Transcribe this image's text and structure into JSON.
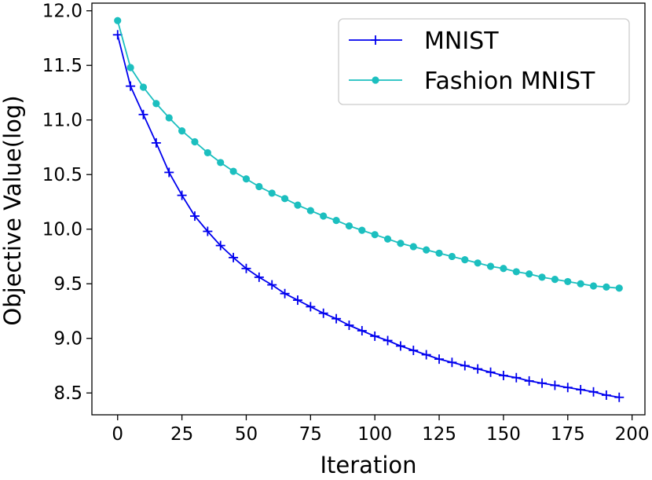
{
  "chart_data": {
    "type": "line",
    "xlabel": "Iteration",
    "ylabel": "Objective Value(log)",
    "xlim": [
      -10,
      205
    ],
    "ylim": [
      8.3,
      12.07
    ],
    "xticks": [
      0,
      25,
      50,
      75,
      100,
      125,
      150,
      175,
      200
    ],
    "xtick_labels": [
      "0",
      "25",
      "50",
      "75",
      "100",
      "125",
      "150",
      "175",
      "200"
    ],
    "yticks": [
      8.5,
      9.0,
      9.5,
      10.0,
      10.5,
      11.0,
      11.5,
      12.0
    ],
    "ytick_labels": [
      "8.5",
      "9.0",
      "9.5",
      "10.0",
      "10.5",
      "11.0",
      "11.5",
      "12.0"
    ],
    "legend_position": "top-right",
    "x": [
      0,
      5,
      10,
      15,
      20,
      25,
      30,
      35,
      40,
      45,
      50,
      55,
      60,
      65,
      70,
      75,
      80,
      85,
      90,
      95,
      100,
      105,
      110,
      115,
      120,
      125,
      130,
      135,
      140,
      145,
      150,
      155,
      160,
      165,
      170,
      175,
      180,
      185,
      190,
      195
    ],
    "series": [
      {
        "name": "MNIST",
        "color": "#0000ee",
        "marker": "plus",
        "values": [
          11.78,
          11.31,
          11.05,
          10.79,
          10.52,
          10.31,
          10.12,
          9.98,
          9.85,
          9.74,
          9.64,
          9.56,
          9.49,
          9.41,
          9.35,
          9.29,
          9.23,
          9.18,
          9.12,
          9.07,
          9.02,
          8.98,
          8.93,
          8.89,
          8.85,
          8.81,
          8.78,
          8.75,
          8.72,
          8.69,
          8.66,
          8.64,
          8.61,
          8.59,
          8.57,
          8.55,
          8.53,
          8.51,
          8.48,
          8.46
        ]
      },
      {
        "name": "Fashion MNIST",
        "color": "#1cbfbf",
        "marker": "circle",
        "values": [
          11.91,
          11.48,
          11.3,
          11.15,
          11.02,
          10.9,
          10.8,
          10.7,
          10.61,
          10.53,
          10.46,
          10.39,
          10.33,
          10.28,
          10.22,
          10.17,
          10.12,
          10.08,
          10.03,
          9.99,
          9.95,
          9.91,
          9.87,
          9.84,
          9.81,
          9.78,
          9.75,
          9.72,
          9.69,
          9.66,
          9.64,
          9.61,
          9.59,
          9.56,
          9.54,
          9.52,
          9.5,
          9.48,
          9.47,
          9.46
        ]
      }
    ]
  }
}
